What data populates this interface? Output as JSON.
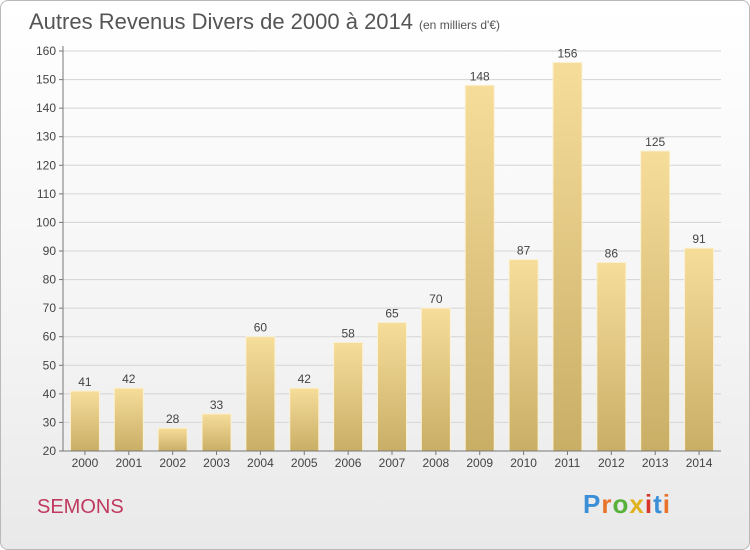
{
  "title": "Autres Revenus Divers de 2000 à 2014",
  "unit": "(en milliers d'€)",
  "commune": "SEMONS",
  "brand": "Proxiti",
  "colors": {
    "bar_light": "#f6dd9a",
    "bar_dark": "#c9ae66",
    "commune": "#c0395f"
  },
  "chart_data": {
    "type": "bar",
    "title": "Autres Revenus Divers de 2000 à 2014",
    "subtitle": "(en milliers d'€)",
    "categories": [
      "2000",
      "2001",
      "2002",
      "2003",
      "2004",
      "2005",
      "2006",
      "2007",
      "2008",
      "2009",
      "2010",
      "2011",
      "2012",
      "2013",
      "2014"
    ],
    "values": [
      41,
      42,
      28,
      33,
      60,
      42,
      58,
      65,
      70,
      148,
      87,
      156,
      86,
      125,
      91
    ],
    "ylim": [
      20,
      160
    ],
    "yticks": [
      20,
      30,
      40,
      50,
      60,
      70,
      80,
      90,
      100,
      110,
      120,
      130,
      140,
      150,
      160
    ],
    "grid": true,
    "xlabel": "",
    "ylabel": ""
  }
}
